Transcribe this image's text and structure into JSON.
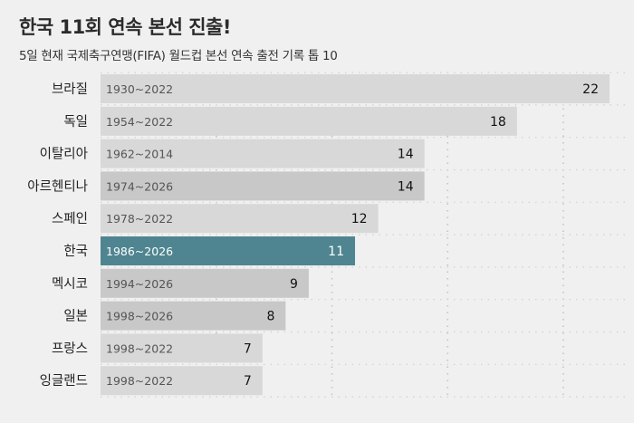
{
  "header": {
    "title": "한국 11회 연속 본선 진출!",
    "subtitle": "5일 현재 국제축구연맹(FIFA) 월드컵 본선 연속 출전 기록 톱 10"
  },
  "colors": {
    "background": "#f0f0f0",
    "bar_default": "#d8d8d8",
    "bar_mid": "#c8c8c8",
    "bar_highlight": "#4f8590",
    "period_text": "#555555",
    "value_text": "#111111",
    "highlight_text": "#ffffff"
  },
  "chart_data": {
    "type": "bar",
    "orientation": "horizontal",
    "categories": [
      "브라질",
      "독일",
      "이탈리아",
      "아르헨티나",
      "스페인",
      "한국",
      "멕시코",
      "일본",
      "프랑스",
      "잉글랜드"
    ],
    "values": [
      22,
      18,
      14,
      14,
      12,
      11,
      9,
      8,
      7,
      7
    ],
    "periods": [
      "1930~2022",
      "1954~2022",
      "1962~2014",
      "1974~2026",
      "1978~2022",
      "1986~2026",
      "1994~2026",
      "1998~2026",
      "1998~2022",
      "1998~2022"
    ],
    "highlight": "한국",
    "xlim": [
      0,
      22
    ],
    "grid": true,
    "legend": "none"
  }
}
